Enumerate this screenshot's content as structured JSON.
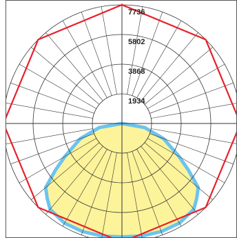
{
  "chart_data": {
    "type": "polar",
    "radial_ticks": [
      "1934",
      "3868",
      "5802",
      "7736"
    ],
    "radial_max": 7736,
    "angle_step_deg": 10,
    "grid": true,
    "colors": {
      "background": "#ffffff",
      "grid": "#333333",
      "series_outline": "#e8202a",
      "series_fill_stroke": "#6cc4ee",
      "series_fill": "#fdf39a"
    },
    "series": [
      {
        "style": "outline",
        "angles_deg": [
          0,
          45,
          90,
          135,
          180,
          225,
          270,
          315
        ],
        "values": [
          7736,
          7736,
          7736,
          7736,
          7736,
          7736,
          7736,
          7736
        ]
      },
      {
        "style": "filled",
        "angles_deg": [
          -90,
          -80,
          -70,
          -60,
          -55,
          -50,
          -45,
          -40,
          -30,
          -20,
          -10,
          0,
          10,
          20,
          30,
          40,
          45,
          50,
          55,
          60,
          70,
          80,
          90
        ],
        "values": [
          0,
          1500,
          2900,
          4300,
          5300,
          6500,
          6900,
          7300,
          7500,
          7500,
          7450,
          7400,
          7450,
          7500,
          7500,
          7300,
          6900,
          6500,
          5300,
          4300,
          2900,
          1500,
          0
        ]
      }
    ]
  }
}
